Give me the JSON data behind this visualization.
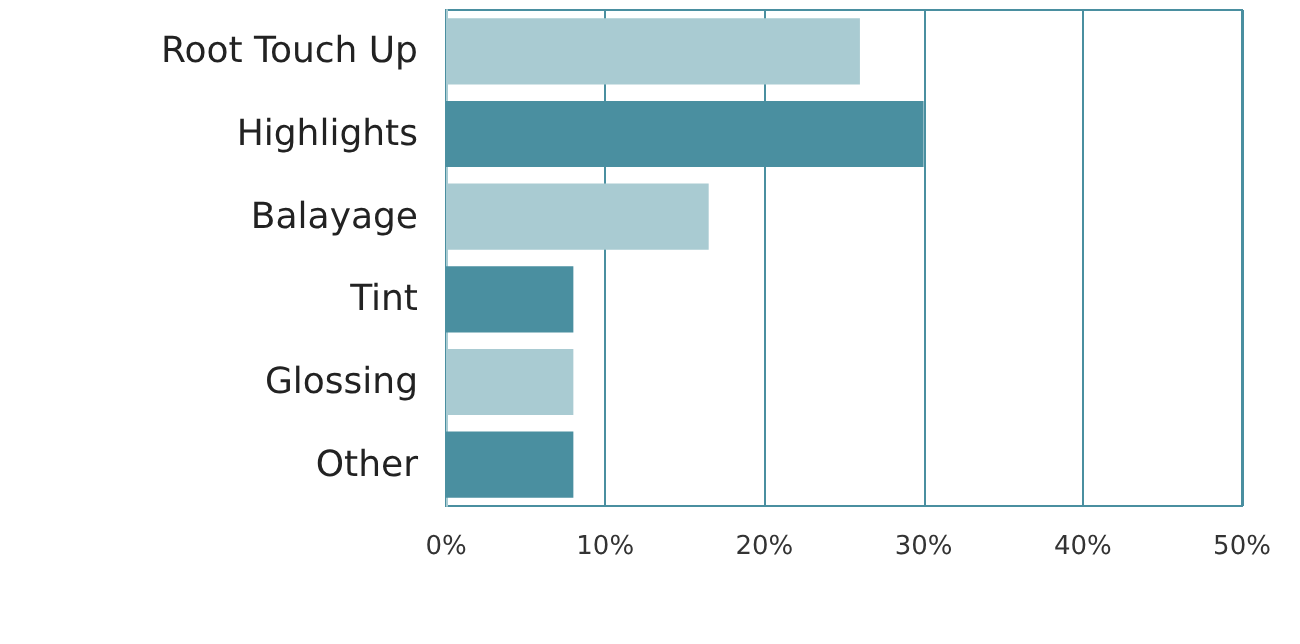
{
  "chart_data": {
    "type": "bar",
    "orientation": "horizontal",
    "categories": [
      "Root Touch Up",
      "Highlights",
      "Balayage",
      "Tint",
      "Glossing",
      "Other"
    ],
    "values": [
      26,
      30,
      16.5,
      8,
      8,
      8
    ],
    "colors": [
      "#a9cbd2",
      "#4a8fa0",
      "#a9cbd2",
      "#4a8fa0",
      "#a9cbd2",
      "#4a8fa0"
    ],
    "xlim": [
      0,
      50
    ],
    "xticks": [
      {
        "value": 0,
        "label": "0%"
      },
      {
        "value": 10,
        "label": "10%"
      },
      {
        "value": 20,
        "label": "20%"
      },
      {
        "value": 30,
        "label": "30%"
      },
      {
        "value": 40,
        "label": "40%"
      },
      {
        "value": 50,
        "label": "50%"
      }
    ],
    "grid": "x"
  }
}
